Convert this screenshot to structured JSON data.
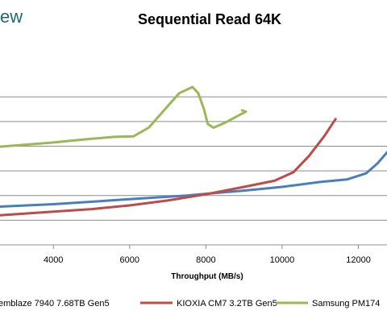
{
  "logo_fragment": "ew",
  "chart_data": {
    "type": "line",
    "title": "Sequential Read 64K",
    "xlabel": "Throughput (MB/s)",
    "ylabel": "",
    "x_ticks": [
      "4000",
      "6000",
      "8000",
      "10000",
      "12000"
    ],
    "x_tick_values": [
      4000,
      6000,
      8000,
      10000,
      12000
    ],
    "xlim": [
      2600,
      12750
    ],
    "ylim": [
      0,
      8
    ],
    "grid": true,
    "legend_position": "bottom",
    "series": [
      {
        "name": "emblaze 7940 7.68TB Gen5",
        "color": "#4a7ebb",
        "points": [
          [
            2600,
            1.55
          ],
          [
            4000,
            1.65
          ],
          [
            6000,
            1.85
          ],
          [
            7500,
            2.0
          ],
          [
            8000,
            2.07
          ],
          [
            9000,
            2.2
          ],
          [
            10000,
            2.35
          ],
          [
            11000,
            2.55
          ],
          [
            11700,
            2.65
          ],
          [
            12200,
            2.9
          ],
          [
            12500,
            3.3
          ],
          [
            12750,
            3.75
          ]
        ]
      },
      {
        "name": "KIOXIA CM7 3.2TB Gen5",
        "color": "#be4b48",
        "points": [
          [
            2600,
            1.2
          ],
          [
            4000,
            1.35
          ],
          [
            5000,
            1.45
          ],
          [
            6000,
            1.6
          ],
          [
            7000,
            1.8
          ],
          [
            8000,
            2.05
          ],
          [
            9000,
            2.35
          ],
          [
            9800,
            2.6
          ],
          [
            10300,
            2.95
          ],
          [
            10700,
            3.6
          ],
          [
            11100,
            4.4
          ],
          [
            11400,
            5.1
          ]
        ]
      },
      {
        "name": "Samsung PM174",
        "color": "#98b954",
        "points": [
          [
            2600,
            3.98
          ],
          [
            4000,
            4.15
          ],
          [
            5000,
            4.3
          ],
          [
            5600,
            4.38
          ],
          [
            6100,
            4.4
          ],
          [
            6500,
            4.75
          ],
          [
            6900,
            5.45
          ],
          [
            7300,
            6.15
          ],
          [
            7650,
            6.4
          ],
          [
            7800,
            6.15
          ],
          [
            7950,
            5.5
          ],
          [
            8050,
            4.9
          ],
          [
            8200,
            4.75
          ],
          [
            8500,
            4.95
          ],
          [
            8800,
            5.2
          ],
          [
            9050,
            5.4
          ],
          [
            8950,
            5.45
          ]
        ]
      }
    ]
  }
}
